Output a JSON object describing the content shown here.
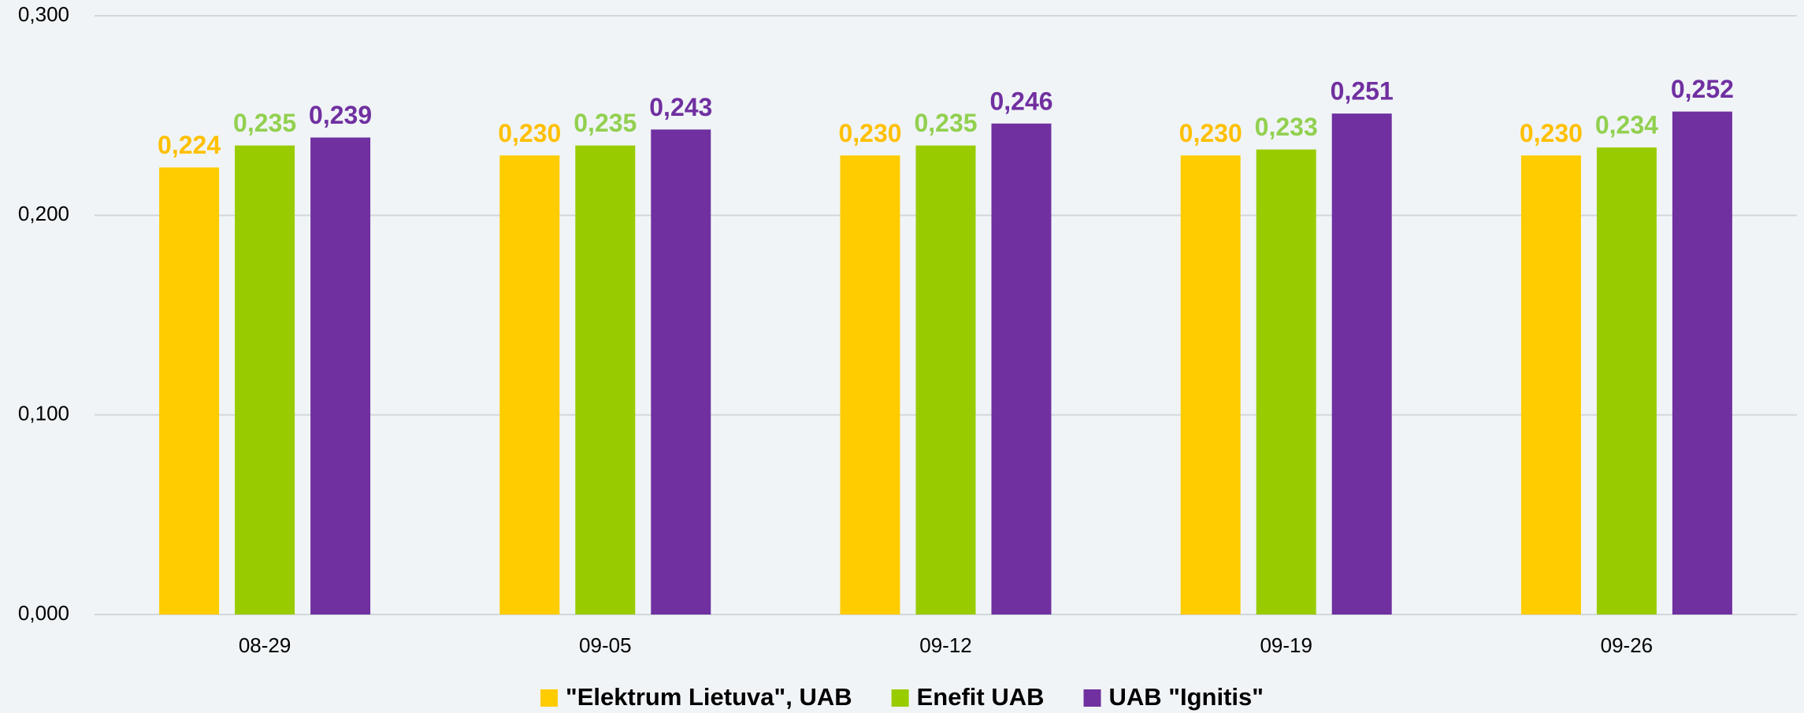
{
  "chart_data": {
    "type": "bar",
    "categories": [
      "08-29",
      "09-05",
      "09-12",
      "09-19",
      "09-26"
    ],
    "series": [
      {
        "name": "\"Elektrum Lietuva\", UAB",
        "color": "#ffcc00",
        "label_color": "#ffc000",
        "values": [
          0.224,
          0.23,
          0.23,
          0.23,
          0.23
        ],
        "value_labels": [
          "0,224",
          "0,230",
          "0,230",
          "0,230",
          "0,230"
        ]
      },
      {
        "name": "Enefit UAB",
        "color": "#99cc00",
        "label_color": "#92d050",
        "values": [
          0.235,
          0.235,
          0.235,
          0.233,
          0.234
        ],
        "value_labels": [
          "0,235",
          "0,235",
          "0,235",
          "0,233",
          "0,234"
        ]
      },
      {
        "name": "UAB \"Ignitis\"",
        "color": "#7030a0",
        "label_color": "#7030a0",
        "values": [
          0.239,
          0.243,
          0.246,
          0.251,
          0.252
        ],
        "value_labels": [
          "0,239",
          "0,243",
          "0,246",
          "0,251",
          "0,252"
        ]
      }
    ],
    "ylim": [
      0,
      0.3
    ],
    "yticks": [
      {
        "value": 0,
        "label": "0,000"
      },
      {
        "value": 0.1,
        "label": "0,100"
      },
      {
        "value": 0.2,
        "label": "0,200"
      },
      {
        "value": 0.3,
        "label": "0,300"
      }
    ],
    "grid": true,
    "legend": "bottom"
  }
}
